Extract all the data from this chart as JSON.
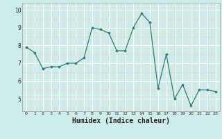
{
  "x": [
    0,
    1,
    2,
    3,
    4,
    5,
    6,
    7,
    8,
    9,
    10,
    11,
    12,
    13,
    14,
    15,
    16,
    17,
    18,
    19,
    20,
    21,
    22,
    23
  ],
  "y": [
    7.9,
    7.6,
    6.7,
    6.8,
    6.8,
    7.0,
    7.0,
    7.3,
    9.0,
    8.9,
    8.7,
    7.7,
    7.7,
    9.0,
    9.8,
    9.3,
    5.6,
    7.5,
    5.0,
    5.8,
    4.6,
    5.5,
    5.5,
    5.4
  ],
  "line_color": "#2e7d6e",
  "marker": "D",
  "markersize": 1.8,
  "linewidth": 0.9,
  "xlabel": "Humidex (Indice chaleur)",
  "xlabel_fontsize": 7,
  "bg_color": "#ceecea",
  "grid_color": "#ffffff",
  "grid_minor_color": "#e8f8f7",
  "tick_color": "#222222",
  "ylim": [
    4.3,
    10.4
  ],
  "xlim": [
    -0.5,
    23.5
  ],
  "yticks": [
    5,
    6,
    7,
    8,
    9,
    10
  ],
  "xticks": [
    0,
    1,
    2,
    3,
    4,
    5,
    6,
    7,
    8,
    9,
    10,
    11,
    12,
    13,
    14,
    15,
    16,
    17,
    18,
    19,
    20,
    21,
    22,
    23
  ]
}
